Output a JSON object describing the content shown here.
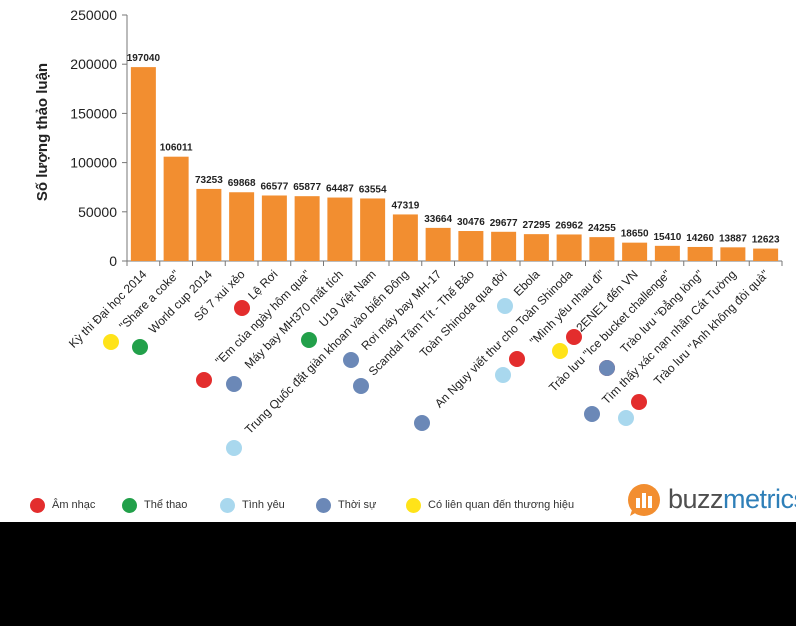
{
  "colors": {
    "bar": "#f28e30",
    "am_nhac": "#e32d2d",
    "the_thao": "#22a04a",
    "tinh_yeu": "#a9d8ee",
    "thoi_su": "#6b88b7",
    "thuong_hieu": "#ffe319",
    "brand_buzz": "#4f4f4f",
    "brand_metrics": "#2e7fb8"
  },
  "chart_data": {
    "type": "bar",
    "ylabel": "Số lượng thảo luận",
    "xlabel": "",
    "ylim": [
      0,
      250000
    ],
    "yticks": [
      "0",
      "50000",
      "100000",
      "150000",
      "200000",
      "250000"
    ],
    "grid": false,
    "categories": [
      "Kỳ thi Đại học 2014",
      "\"Share a coke\"",
      "World cup 2014",
      "Số 7 xui xẻo",
      "Lệ Rơi",
      "\"Em của ngày hôm qua\"",
      "Máy bay MH370 mất tích",
      "U19 Việt Nam",
      "Trung Quốc đặt giàn khoan vào biển Đông",
      "Rơi máy bay MH-17",
      "Scandal Tâm Tít - Thế Bảo",
      "Toàn Shinoda qua đời",
      "Ebola",
      "An Nguy viết thư cho Toàn Shinoda",
      "\"Mình yêu nhau đi\"",
      "2ENE1 đến VN",
      "Trào lưu \"Ice bucket challenge\"",
      "Trào lưu \"Đẳng lòng\"",
      "Tìm thấy xác nạn nhân Cát Tường",
      "Trào lưu \"Anh không đòi quà\""
    ],
    "values": [
      197040,
      106011,
      73253,
      69868,
      66577,
      65877,
      64487,
      63554,
      47319,
      33664,
      30476,
      29677,
      27295,
      26962,
      24255,
      18650,
      15410,
      14260,
      13887,
      12623
    ],
    "data_labels": [
      "197040",
      "106011",
      "73253",
      "69868",
      "66577",
      "65877",
      "64487",
      "63554",
      "47319",
      "33664",
      "30476",
      "29677",
      "27295",
      "26962",
      "24255",
      "18650",
      "15410",
      "14260",
      "13887",
      "12623"
    ],
    "category_group": [
      "thuong_hieu",
      "the_thao",
      "am_nhac",
      "thoi_su",
      "am_nhac",
      "the_thao",
      "thoi_su",
      "thoi_su",
      "tinh_yeu",
      "thoi_su",
      "tinh_yeu",
      "tinh_yeu",
      "am_nhac",
      "thuong_hieu",
      "am_nhac",
      "am_nhac",
      "thoi_su",
      "tinh_yeu",
      "thoi_su",
      "am_nhac"
    ]
  },
  "legend": [
    {
      "key": "am_nhac",
      "label": "Âm nhạc"
    },
    {
      "key": "the_thao",
      "label": "Thể thao"
    },
    {
      "key": "tinh_yeu",
      "label": "Tình yêu"
    },
    {
      "key": "thoi_su",
      "label": "Thời sự"
    },
    {
      "key": "thuong_hieu",
      "label": "Có liên quan đến thương hiệu"
    }
  ],
  "brand": {
    "part1": "buzz",
    "part2": "metrics"
  }
}
